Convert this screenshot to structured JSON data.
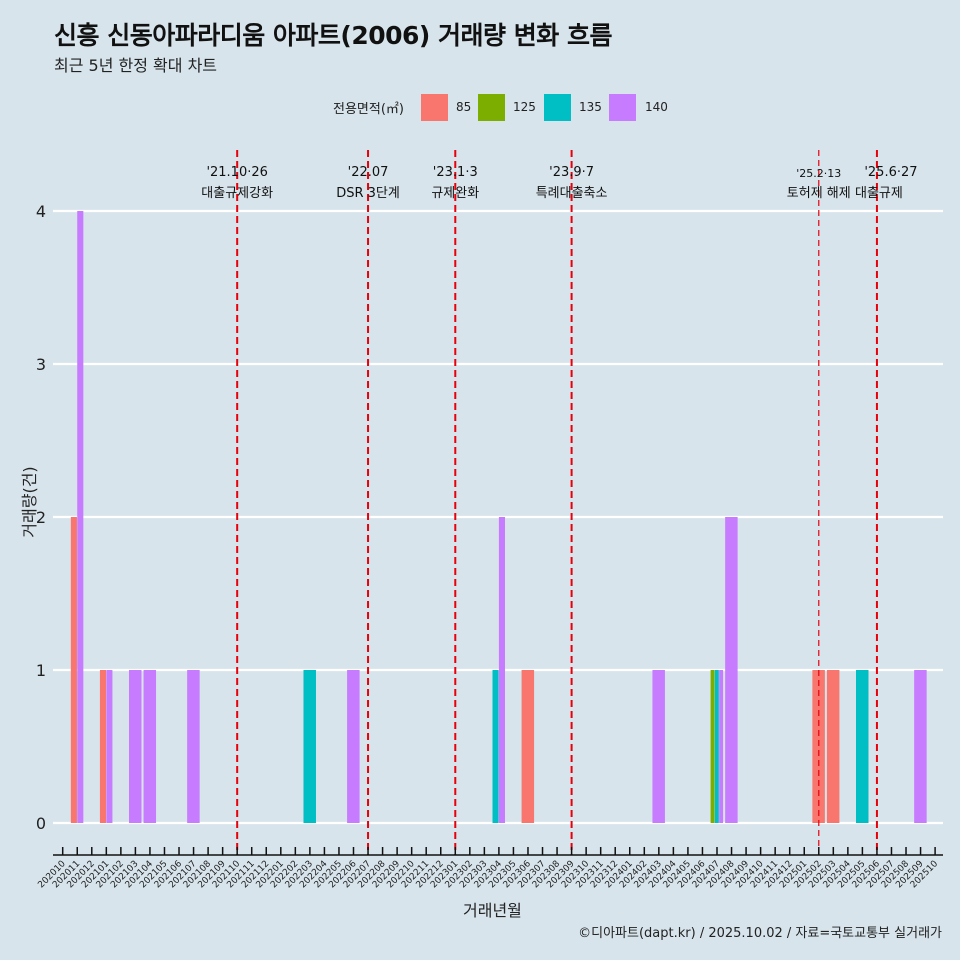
{
  "title": "신흥 신동아파라디움 아파트(2006) 거래량 변화 흐름",
  "subtitle": "최근 5년 한정 확대 차트",
  "caption": "©디아파트(dapt.kr) / 2025.10.02 / 자료=국토교통부 실거래가",
  "legend": {
    "title": "전용면적(㎡)",
    "items": [
      {
        "label": "85",
        "color": "#F8766D"
      },
      {
        "label": "125",
        "color": "#7CAE00"
      },
      {
        "label": "135",
        "color": "#00BFC4"
      },
      {
        "label": "140",
        "color": "#C77CFF"
      }
    ]
  },
  "chart_data": {
    "type": "bar",
    "title": "신흥 신동아파라디움 아파트(2006) 거래량 변화 흐름",
    "subtitle": "최근 5년 한정 확대 차트",
    "xlabel": "거래년월",
    "ylabel": "거래량(건)",
    "ylim": [
      0,
      4
    ],
    "yticks": [
      0,
      1,
      2,
      3,
      4
    ],
    "grid": "horizontal",
    "legend_position": "top",
    "bar_position": "dodge",
    "categories": [
      "202010",
      "202011",
      "202012",
      "202101",
      "202102",
      "202103",
      "202104",
      "202105",
      "202106",
      "202107",
      "202108",
      "202109",
      "202110",
      "202111",
      "202112",
      "202201",
      "202202",
      "202203",
      "202204",
      "202205",
      "202206",
      "202207",
      "202208",
      "202209",
      "202210",
      "202211",
      "202212",
      "202301",
      "202302",
      "202303",
      "202304",
      "202305",
      "202306",
      "202307",
      "202308",
      "202309",
      "202310",
      "202311",
      "202312",
      "202401",
      "202402",
      "202403",
      "202404",
      "202405",
      "202406",
      "202407",
      "202408",
      "202409",
      "202410",
      "202411",
      "202412",
      "202501",
      "202502",
      "202503",
      "202504",
      "202505",
      "202506",
      "202507",
      "202508",
      "202509",
      "202510"
    ],
    "records": [
      {
        "month": "202011",
        "area": "85",
        "count": 2
      },
      {
        "month": "202011",
        "area": "140",
        "count": 4
      },
      {
        "month": "202101",
        "area": "85",
        "count": 1
      },
      {
        "month": "202101",
        "area": "140",
        "count": 1
      },
      {
        "month": "202103",
        "area": "140",
        "count": 1
      },
      {
        "month": "202104",
        "area": "140",
        "count": 1
      },
      {
        "month": "202107",
        "area": "140",
        "count": 1
      },
      {
        "month": "202203",
        "area": "135",
        "count": 1
      },
      {
        "month": "202206",
        "area": "140",
        "count": 1
      },
      {
        "month": "202304",
        "area": "135",
        "count": 1
      },
      {
        "month": "202304",
        "area": "140",
        "count": 2
      },
      {
        "month": "202306",
        "area": "85",
        "count": 1
      },
      {
        "month": "202403",
        "area": "140",
        "count": 1
      },
      {
        "month": "202407",
        "area": "125",
        "count": 1
      },
      {
        "month": "202407",
        "area": "135",
        "count": 1
      },
      {
        "month": "202407",
        "area": "140",
        "count": 1
      },
      {
        "month": "202408",
        "area": "140",
        "count": 2
      },
      {
        "month": "202502",
        "area": "85",
        "count": 1
      },
      {
        "month": "202503",
        "area": "85",
        "count": 1
      },
      {
        "month": "202505",
        "area": "135",
        "count": 1
      },
      {
        "month": "202509",
        "area": "140",
        "count": 1
      }
    ],
    "annotations": [
      {
        "month": "202110",
        "date": "'21.10·26",
        "text": "대출규제강화",
        "style": "dashed"
      },
      {
        "month": "202207",
        "date": "'22.07",
        "text": "DSR 3단계",
        "style": "dashed"
      },
      {
        "month": "202301",
        "date": "'23.1·3",
        "text": "규제완화",
        "style": "dashed"
      },
      {
        "month": "202309",
        "date": "'23.9·7",
        "text": "특례대출축소",
        "style": "dashed"
      },
      {
        "month": "202502",
        "date": "'25.2·13",
        "text": "토허제 해제",
        "style": "thin-dashed"
      },
      {
        "month": "202506",
        "date": "'25.6·27",
        "text": "대출규제",
        "style": "dashed"
      }
    ],
    "annotation_color": "#E8000B"
  }
}
